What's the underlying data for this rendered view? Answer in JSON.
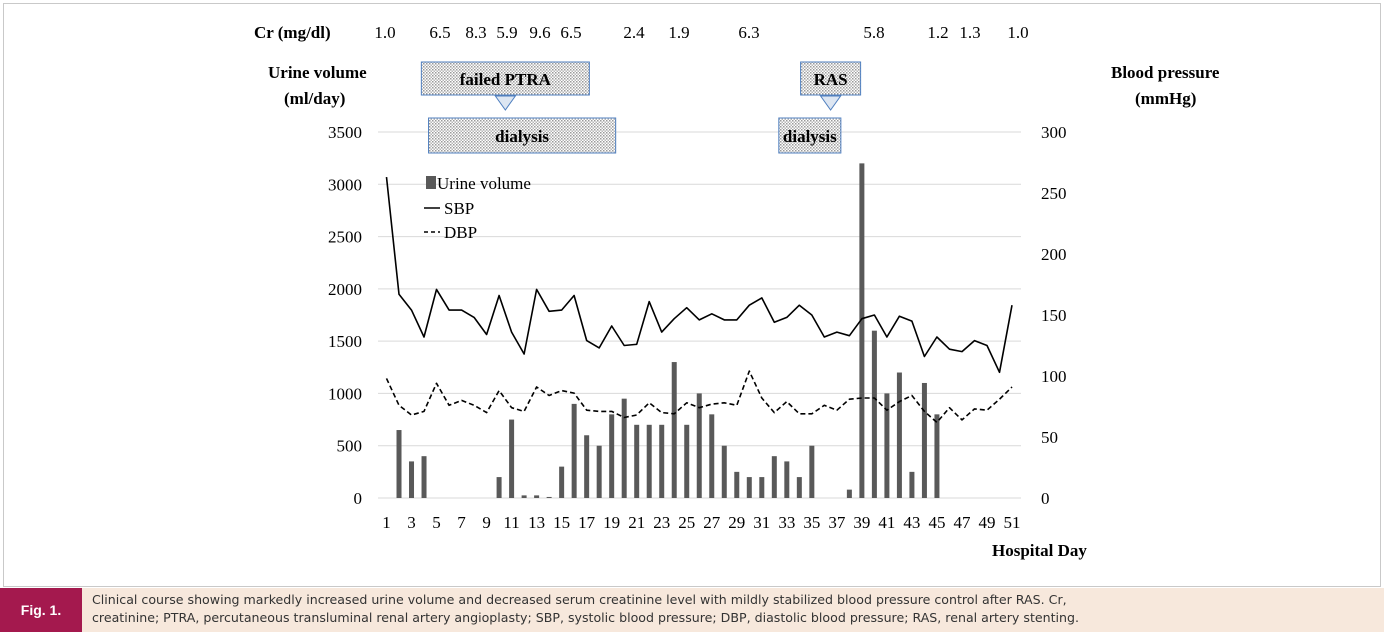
{
  "chart_data": {
    "type": "bar+line",
    "x_label": "Hospital Day",
    "x_ticks": [
      "1",
      "3",
      "5",
      "7",
      "9",
      "11",
      "13",
      "15",
      "17",
      "19",
      "21",
      "23",
      "25",
      "27",
      "29",
      "31",
      "33",
      "35",
      "37",
      "39",
      "41",
      "43",
      "45",
      "47",
      "49",
      "51"
    ],
    "y_left": {
      "label_line1": "Urine volume",
      "label_line2": "(ml/day)",
      "range": [
        0,
        3500
      ],
      "ticks": [
        "0",
        "500",
        "1000",
        "1500",
        "2000",
        "2500",
        "3000",
        "3500"
      ]
    },
    "y_right": {
      "label_line1": "Blood pressure",
      "label_line2": "(mmHg)",
      "range": [
        0,
        300
      ],
      "ticks": [
        "0",
        "50",
        "100",
        "150",
        "200",
        "250",
        "300"
      ]
    },
    "cr_label": "Cr (mg/dl)",
    "cr_values": [
      {
        "day": 1,
        "text": "1.0"
      },
      {
        "day": 9,
        "text": "6.5"
      },
      {
        "day": 11,
        "text": "8.3"
      },
      {
        "day": 13,
        "text": "5.9"
      },
      {
        "day": 15,
        "text": "9.6"
      },
      {
        "day": 17,
        "text": "6.5"
      },
      {
        "day": 21,
        "text": "2.4"
      },
      {
        "day": 23,
        "text": "1.9"
      },
      {
        "day": 28,
        "text": "6.3"
      },
      {
        "day": 35,
        "text": "5.8"
      },
      {
        "day": 40,
        "text": "1.2"
      },
      {
        "day": 42,
        "text": "1.3"
      },
      {
        "day": 46,
        "text": "1.0"
      }
    ],
    "events": [
      {
        "text": "failed PTRA",
        "center_day": 10.5
      },
      {
        "text": "RAS",
        "center_day": 36.5
      }
    ],
    "dialysis_periods": [
      {
        "text": "dialysis",
        "start_day": 5,
        "end_day": 19
      },
      {
        "text": "dialysis",
        "start_day": 33,
        "end_day": 37
      }
    ],
    "legend": {
      "position": "upper-left",
      "items": [
        {
          "label": "Urine volume",
          "style": "bar"
        },
        {
          "label": "SBP",
          "style": "solid"
        },
        {
          "label": "DBP",
          "style": "dashed"
        }
      ]
    },
    "series": [
      {
        "name": "Urine volume",
        "axis": "left",
        "type": "bar",
        "color": "#595959",
        "values": [
          0,
          650,
          350,
          400,
          0,
          0,
          0,
          0,
          0,
          200,
          750,
          25,
          25,
          10,
          300,
          900,
          600,
          500,
          800,
          950,
          700,
          700,
          700,
          1300,
          700,
          1000,
          800,
          500,
          250,
          200,
          200,
          400,
          350,
          200,
          500,
          0,
          0,
          80,
          3200,
          1600,
          1000,
          1200,
          250,
          1100,
          800,
          0,
          0,
          0,
          0,
          0,
          0
        ]
      },
      {
        "name": "SBP",
        "axis": "right",
        "type": "line",
        "style": "solid",
        "color": "#000000",
        "values": [
          263,
          167,
          154,
          132,
          171,
          154,
          154,
          148,
          134,
          166,
          136,
          118,
          171,
          153,
          154,
          166,
          129,
          123,
          141,
          125,
          126,
          161,
          136,
          147,
          156,
          146,
          151,
          146,
          146,
          158,
          164,
          144,
          148,
          158,
          150,
          132,
          136,
          133,
          147,
          150,
          132,
          149,
          145,
          116,
          132,
          122,
          120,
          129,
          125,
          103,
          158
        ]
      },
      {
        "name": "DBP",
        "axis": "right",
        "type": "line",
        "style": "dashed",
        "color": "#000000",
        "values": [
          98,
          76,
          68,
          71,
          94,
          76,
          80,
          76,
          70,
          88,
          74,
          71,
          91,
          84,
          88,
          86,
          72,
          71,
          71,
          66,
          68,
          78,
          70,
          69,
          78,
          74,
          77,
          78,
          76,
          104,
          82,
          70,
          79,
          69,
          69,
          76,
          72,
          81,
          82,
          82,
          72,
          79,
          84,
          71,
          62,
          74,
          64,
          73,
          72,
          81,
          91
        ]
      }
    ],
    "grid": "horizontal"
  },
  "caption": {
    "fig_label": "Fig. 1.",
    "line1": "Clinical course showing markedly increased urine volume and decreased serum creatinine level with mildly stabilized blood pressure control after RAS. Cr,",
    "line2": "creatinine; PTRA, percutaneous transluminal renal artery angioplasty; SBP, systolic blood pressure; DBP, diastolic blood pressure; RAS, renal artery stenting."
  }
}
